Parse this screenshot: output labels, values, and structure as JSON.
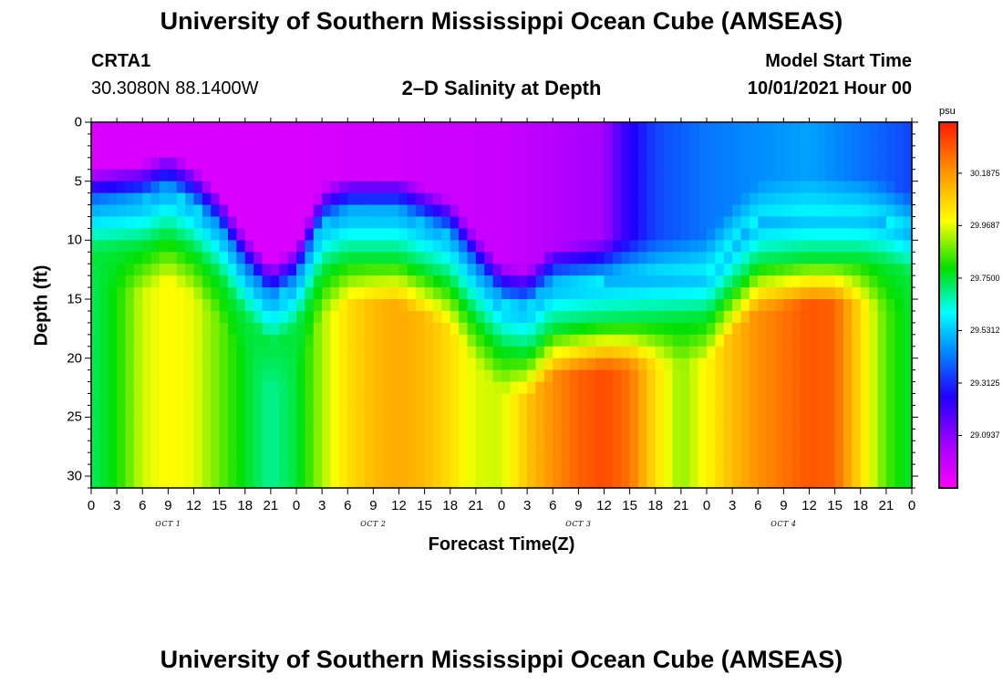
{
  "header": {
    "title": "University of Southern Mississippi Ocean Cube (AMSEAS)",
    "station_id": "CRTA1",
    "coords": "30.3080N  88.1400W",
    "chart_title": "2–D Salinity at Depth",
    "model_label": "Model Start Time",
    "model_time": "10/01/2021 Hour 00"
  },
  "footer": {
    "title": "University of Southern Mississippi Ocean Cube (AMSEAS)"
  },
  "chart_data": {
    "type": "heatmap",
    "title": "2–D Salinity at Depth",
    "xlabel": "Forecast Time(Z)",
    "ylabel": "Depth (ft)",
    "x_range_hours": [
      0,
      96
    ],
    "y_range_ft": [
      0,
      31
    ],
    "x_tick_labels": [
      "0",
      "3",
      "6",
      "9",
      "12",
      "15",
      "18",
      "21",
      "0",
      "3",
      "6",
      "9",
      "12",
      "15",
      "18",
      "21",
      "0",
      "3",
      "6",
      "9",
      "12",
      "15",
      "18",
      "21",
      "0",
      "3",
      "6",
      "9",
      "12",
      "15",
      "18",
      "21",
      "0"
    ],
    "y_ticks": [
      "0",
      "5",
      "10",
      "15",
      "20",
      "25",
      "30"
    ],
    "day_labels": [
      "OCT 1",
      "OCT 2",
      "OCT 3",
      "OCT 4"
    ],
    "colorbar": {
      "unit": "psu",
      "min": 28.875,
      "max": 30.4,
      "labels": [
        "30.1875",
        "29.9687",
        "29.7500",
        "29.5312",
        "29.3125",
        "29.0937"
      ],
      "label_values": [
        30.1875,
        29.9687,
        29.75,
        29.5312,
        29.3125,
        29.0937
      ]
    },
    "interface_depth_ft": [
      [
        0,
        8.0
      ],
      [
        6,
        7.5
      ],
      [
        9,
        6.5
      ],
      [
        12,
        7.8
      ],
      [
        15,
        10.0
      ],
      [
        18,
        13.5
      ],
      [
        21,
        16.0
      ],
      [
        24,
        14.5
      ],
      [
        27,
        9.5
      ],
      [
        30,
        8.5
      ],
      [
        36,
        8.5
      ],
      [
        42,
        10.5
      ],
      [
        45,
        13.5
      ],
      [
        48,
        16.0
      ],
      [
        51,
        16.5
      ],
      [
        54,
        14.5
      ],
      [
        60,
        14.0
      ],
      [
        72,
        13.5
      ],
      [
        75,
        11.0
      ],
      [
        78,
        9.0
      ],
      [
        84,
        8.5
      ],
      [
        90,
        8.5
      ],
      [
        93,
        9.0
      ],
      [
        96,
        10.0
      ]
    ],
    "surface_salinity_profile": [
      [
        0,
        28.95
      ],
      [
        24,
        28.95
      ],
      [
        48,
        28.98
      ],
      [
        60,
        29.05
      ],
      [
        62,
        29.2
      ],
      [
        66,
        29.35
      ],
      [
        72,
        29.42
      ],
      [
        84,
        29.48
      ],
      [
        96,
        29.35
      ]
    ],
    "bottom_salinity_profile": [
      [
        0,
        29.72
      ],
      [
        3,
        29.8
      ],
      [
        6,
        29.95
      ],
      [
        9,
        30.0
      ],
      [
        12,
        29.97
      ],
      [
        15,
        29.87
      ],
      [
        18,
        29.77
      ],
      [
        21,
        29.68
      ],
      [
        24,
        29.75
      ],
      [
        27,
        29.92
      ],
      [
        30,
        30.05
      ],
      [
        33,
        30.12
      ],
      [
        36,
        30.15
      ],
      [
        39,
        30.12
      ],
      [
        42,
        30.05
      ],
      [
        45,
        29.96
      ],
      [
        48,
        29.95
      ],
      [
        51,
        30.1
      ],
      [
        54,
        30.2
      ],
      [
        57,
        30.28
      ],
      [
        60,
        30.32
      ],
      [
        63,
        30.25
      ],
      [
        66,
        30.05
      ],
      [
        69,
        29.9
      ],
      [
        72,
        30.0
      ],
      [
        75,
        30.12
      ],
      [
        78,
        30.2
      ],
      [
        81,
        30.25
      ],
      [
        84,
        30.3
      ],
      [
        87,
        30.28
      ],
      [
        90,
        30.05
      ],
      [
        93,
        29.85
      ],
      [
        96,
        29.75
      ]
    ]
  }
}
